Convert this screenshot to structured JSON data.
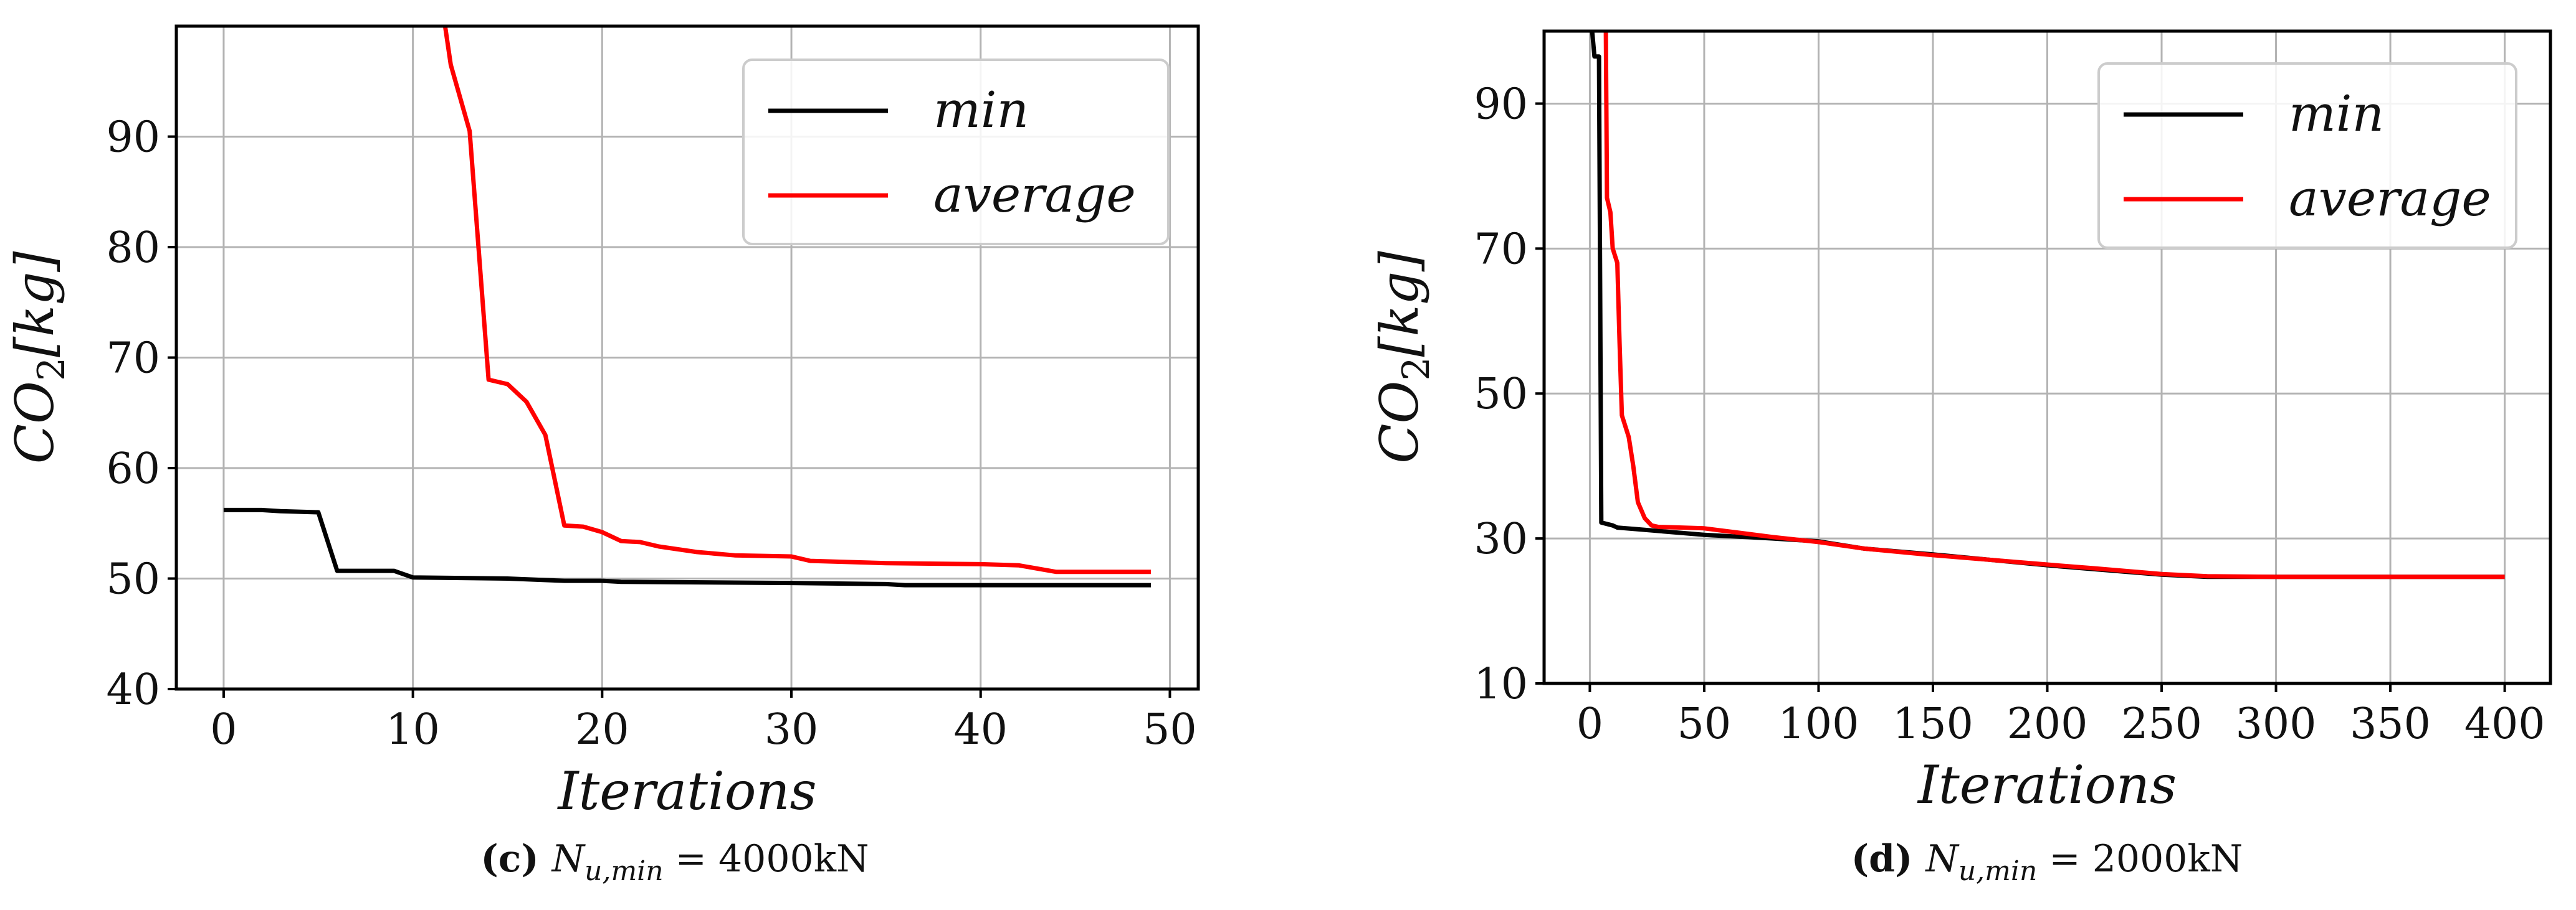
{
  "chart_data": [
    {
      "type": "line",
      "panel": "c",
      "caption": {
        "letter": "(c)",
        "symbol": "N",
        "subscript": "u,min",
        "rest": "= 4000kN"
      },
      "xlabel": "Iterations",
      "ylabel": "CO",
      "ylabel_sub": "2",
      "ylabel_suffix": "[kg]",
      "xlim": [
        -2.5,
        51.5
      ],
      "ylim": [
        40,
        100
      ],
      "xticks": [
        0,
        10,
        20,
        30,
        40,
        50
      ],
      "xtick_labels": [
        "0",
        "10",
        "20",
        "30",
        "40",
        "50"
      ],
      "yticks": [
        40,
        50,
        60,
        70,
        80,
        90
      ],
      "ytick_labels": [
        "40",
        "50",
        "60",
        "70",
        "80",
        "90"
      ],
      "grid": true,
      "legend": {
        "placement": "top-right",
        "entries": [
          {
            "label": "min",
            "color": "#000000"
          },
          {
            "label": "average",
            "color": "#ff0000"
          }
        ]
      },
      "series": [
        {
          "name": "min",
          "color": "#000000",
          "points": [
            [
              0,
              56.2
            ],
            [
              2,
              56.2
            ],
            [
              3,
              56.1
            ],
            [
              5,
              56.0
            ],
            [
              6,
              50.7
            ],
            [
              9,
              50.7
            ],
            [
              10,
              50.1
            ],
            [
              15,
              50.0
            ],
            [
              18,
              49.8
            ],
            [
              20,
              49.8
            ],
            [
              21,
              49.7
            ],
            [
              30,
              49.6
            ],
            [
              35,
              49.5
            ],
            [
              36,
              49.4
            ],
            [
              49,
              49.4
            ]
          ]
        },
        {
          "name": "average",
          "color": "#ff0000",
          "points": [
            [
              11.7,
              100
            ],
            [
              12,
              96.5
            ],
            [
              13,
              90.5
            ],
            [
              14,
              68.0
            ],
            [
              15,
              67.6
            ],
            [
              16,
              66.0
            ],
            [
              17,
              63.0
            ],
            [
              18,
              54.8
            ],
            [
              19,
              54.7
            ],
            [
              20,
              54.2
            ],
            [
              21,
              53.4
            ],
            [
              22,
              53.3
            ],
            [
              23,
              52.9
            ],
            [
              25,
              52.4
            ],
            [
              27,
              52.1
            ],
            [
              30,
              52.0
            ],
            [
              31,
              51.6
            ],
            [
              35,
              51.4
            ],
            [
              40,
              51.3
            ],
            [
              42,
              51.2
            ],
            [
              44,
              50.6
            ],
            [
              49,
              50.6
            ]
          ]
        }
      ]
    },
    {
      "type": "line",
      "panel": "d",
      "caption": {
        "letter": "(d)",
        "symbol": "N",
        "subscript": "u,min",
        "rest": "= 2000kN"
      },
      "xlabel": "Iterations",
      "ylabel": "CO",
      "ylabel_sub": "2",
      "ylabel_suffix": "[kg]",
      "xlim": [
        -20,
        420
      ],
      "ylim": [
        10,
        100
      ],
      "xticks": [
        0,
        50,
        100,
        150,
        200,
        250,
        300,
        350,
        400
      ],
      "xtick_labels": [
        "0",
        "50",
        "100",
        "150",
        "200",
        "250",
        "300",
        "350",
        "400"
      ],
      "yticks": [
        10,
        30,
        50,
        70,
        90
      ],
      "ytick_labels": [
        "10",
        "30",
        "50",
        "70",
        "90"
      ],
      "grid": true,
      "legend": {
        "placement": "top-right",
        "entries": [
          {
            "label": "min",
            "color": "#000000"
          },
          {
            "label": "average",
            "color": "#ff0000"
          }
        ]
      },
      "series": [
        {
          "name": "min",
          "color": "#000000",
          "points": [
            [
              1,
              100
            ],
            [
              2,
              96.5
            ],
            [
              4,
              96.5
            ],
            [
              5,
              32.2
            ],
            [
              10,
              31.8
            ],
            [
              12,
              31.5
            ],
            [
              20,
              31.3
            ],
            [
              50,
              30.5
            ],
            [
              80,
              30.0
            ],
            [
              100,
              29.6
            ],
            [
              120,
              28.6
            ],
            [
              150,
              27.8
            ],
            [
              200,
              26.3
            ],
            [
              250,
              25.0
            ],
            [
              270,
              24.7
            ],
            [
              300,
              24.7
            ],
            [
              400,
              24.7
            ]
          ]
        },
        {
          "name": "average",
          "color": "#ff0000",
          "points": [
            [
              7,
              100
            ],
            [
              7.5,
              77
            ],
            [
              9,
              75
            ],
            [
              10,
              70
            ],
            [
              12,
              68
            ],
            [
              13,
              57
            ],
            [
              14,
              47
            ],
            [
              17,
              44
            ],
            [
              19,
              40
            ],
            [
              21,
              35
            ],
            [
              24,
              32.8
            ],
            [
              27,
              31.8
            ],
            [
              30,
              31.6
            ],
            [
              50,
              31.4
            ],
            [
              60,
              31.0
            ],
            [
              80,
              30.2
            ],
            [
              100,
              29.5
            ],
            [
              120,
              28.6
            ],
            [
              150,
              27.7
            ],
            [
              200,
              26.4
            ],
            [
              220,
              25.9
            ],
            [
              250,
              25.1
            ],
            [
              270,
              24.8
            ],
            [
              300,
              24.7
            ],
            [
              400,
              24.7
            ]
          ]
        }
      ]
    }
  ]
}
